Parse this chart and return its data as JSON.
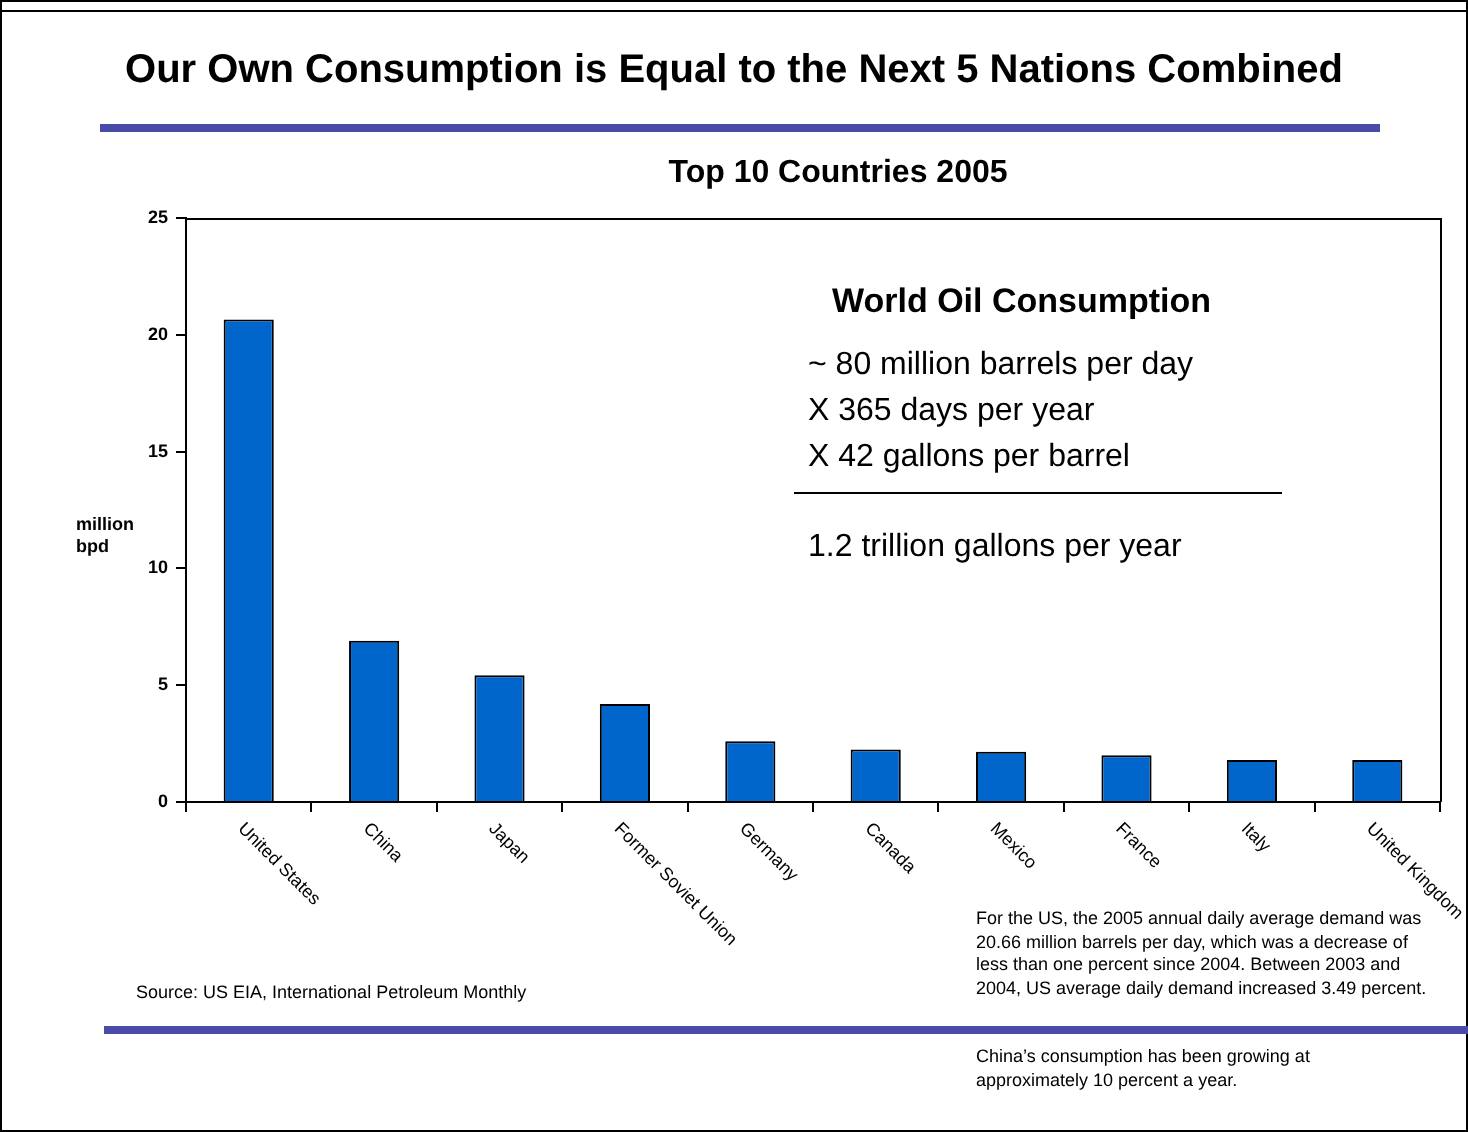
{
  "chart_data": {
    "type": "bar",
    "title": "Our Own Consumption is Equal to the Next 5 Nations Combined",
    "subtitle": "Top 10 Countries 2005",
    "ylabel": "million bpd",
    "categories": [
      "United States",
      "China",
      "Japan",
      "Former Soviet Union",
      "Germany",
      "Canada",
      "Mexico",
      "France",
      "Italy",
      "United Kingdom"
    ],
    "values": [
      20.66,
      6.9,
      5.43,
      4.2,
      2.6,
      2.25,
      2.15,
      2.0,
      1.8,
      1.8
    ],
    "color": "#0066cc",
    "ylim": [
      0,
      25
    ],
    "yticks": [
      0,
      5,
      10,
      15,
      20,
      25
    ],
    "grid": false,
    "legend": false,
    "annotations": [
      "World Oil Consumption",
      "~ 80 million barrels per day",
      "X 365 days per year",
      "X 42 gallons per barrel",
      "1.2 trillion gallons per year",
      "Source:  US EIA, International Petroleum Monthly",
      "For the US, the 2005 annual daily average demand was 20.66 million barrels per day, which was a decrease of less than one percent since 2004.  Between 2003 and 2004, US average daily demand increased 3.49 percent.",
      "China’s consumption has been growing at approximately 10 percent a year."
    ]
  }
}
